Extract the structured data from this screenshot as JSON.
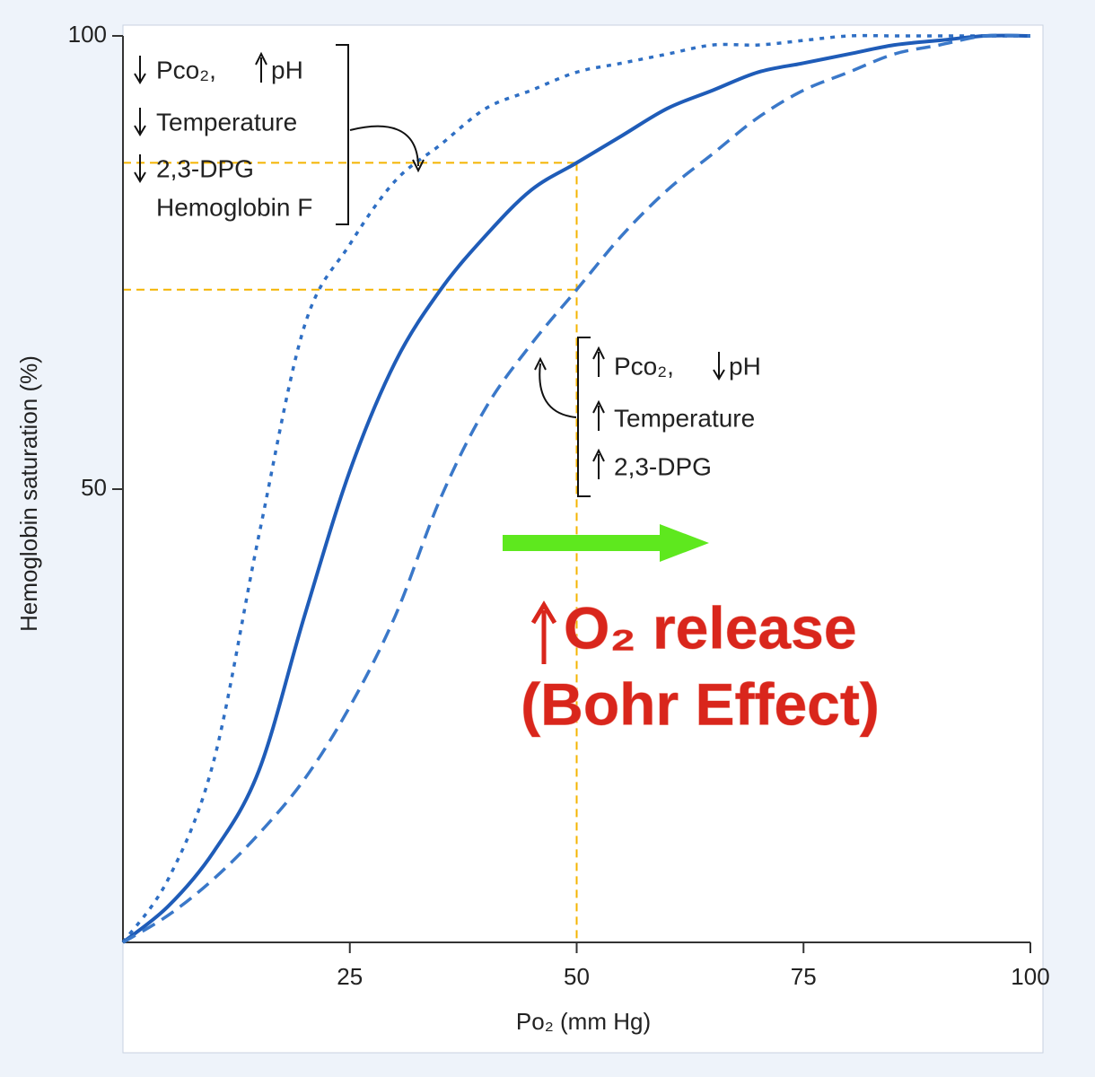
{
  "chart_data": {
    "type": "line",
    "x": [
      0,
      5,
      10,
      15,
      20,
      25,
      30,
      35,
      40,
      45,
      50,
      55,
      60,
      65,
      70,
      75,
      80,
      85,
      90,
      95,
      100
    ],
    "series": [
      {
        "color": "#2f6fc4",
        "style": "dotted",
        "values": [
          0,
          7,
          20,
          45,
          68,
          77,
          84,
          88,
          92,
          94,
          96,
          97,
          98,
          99,
          99,
          99.5,
          100,
          100,
          100,
          100,
          100
        ]
      },
      {
        "color": "#1f5cb8",
        "style": "solid",
        "values": [
          0,
          4,
          10,
          19,
          36,
          52,
          64,
          72,
          78,
          83,
          86,
          89,
          92,
          94,
          96,
          97,
          98,
          99,
          99.5,
          100,
          100
        ]
      },
      {
        "color": "#3a78c9",
        "style": "dashed",
        "values": [
          0,
          3,
          7,
          12,
          18,
          26,
          36,
          49,
          59,
          66,
          72,
          78,
          83,
          87,
          91,
          94,
          96,
          98,
          99,
          100,
          100
        ]
      }
    ],
    "xlim": [
      0,
      100
    ],
    "ylim": [
      0,
      100
    ],
    "xticks": [
      25,
      50,
      75,
      100
    ],
    "yticks": [
      50,
      100
    ],
    "xlabel": "Po₂ (mm Hg)",
    "ylabel": "Hemoglobin saturation (%)",
    "ref_x": 50,
    "ref_y": [
      86,
      72
    ],
    "ref_color": "#f4b400",
    "left_annotation": [
      "Pco₂,",
      "pH",
      "Temperature",
      "2,3-DPG",
      "Hemoglobin F"
    ],
    "right_annotation": [
      "Pco₂,",
      "pH",
      "Temperature",
      "2,3-DPG"
    ],
    "callout": [
      "O₂ release",
      "(Bohr Effect)"
    ]
  }
}
